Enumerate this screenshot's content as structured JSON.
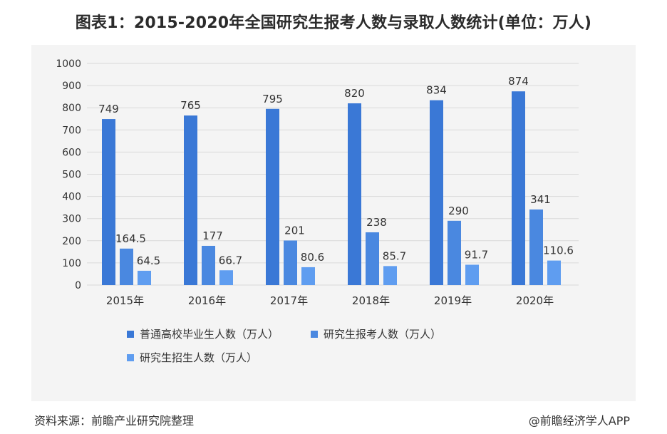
{
  "title": "图表1：2015-2020年全国研究生报考人数与录取人数统计(单位：万人)",
  "source": "资料来源：前瞻产业研究院整理",
  "credit": "@前瞻经济学人APP",
  "colors": {
    "background": "#f4f4f4",
    "grid": "#d9d9d9",
    "axis_text": "#333333"
  },
  "chart_data": {
    "type": "bar",
    "categories": [
      "2015年",
      "2016年",
      "2017年",
      "2018年",
      "2019年",
      "2020年"
    ],
    "ylim": [
      0,
      1000
    ],
    "yticks": [
      0,
      100,
      200,
      300,
      400,
      500,
      600,
      700,
      800,
      900,
      1000
    ],
    "grid": true,
    "legend_position": "bottom",
    "series": [
      {
        "name": "普通高校毕业生人数（万人）",
        "color": "#3a78d6",
        "values": [
          749,
          765,
          795,
          820,
          834,
          874
        ],
        "labels": [
          "749",
          "765",
          "795",
          "820",
          "834",
          "874"
        ]
      },
      {
        "name": "研究生报考人数（万人）",
        "color": "#4a88e0",
        "values": [
          164.5,
          177,
          201,
          238,
          290,
          341
        ],
        "labels": [
          "164.5",
          "177",
          "201",
          "238",
          "290",
          "341"
        ]
      },
      {
        "name": "研究生招生人数（万人）",
        "color": "#5f9df0",
        "values": [
          64.5,
          66.7,
          80.6,
          85.7,
          91.7,
          110.6
        ],
        "labels": [
          "64.5",
          "66.7",
          "80.6",
          "85.7",
          "91.7",
          "110.6"
        ]
      }
    ]
  }
}
